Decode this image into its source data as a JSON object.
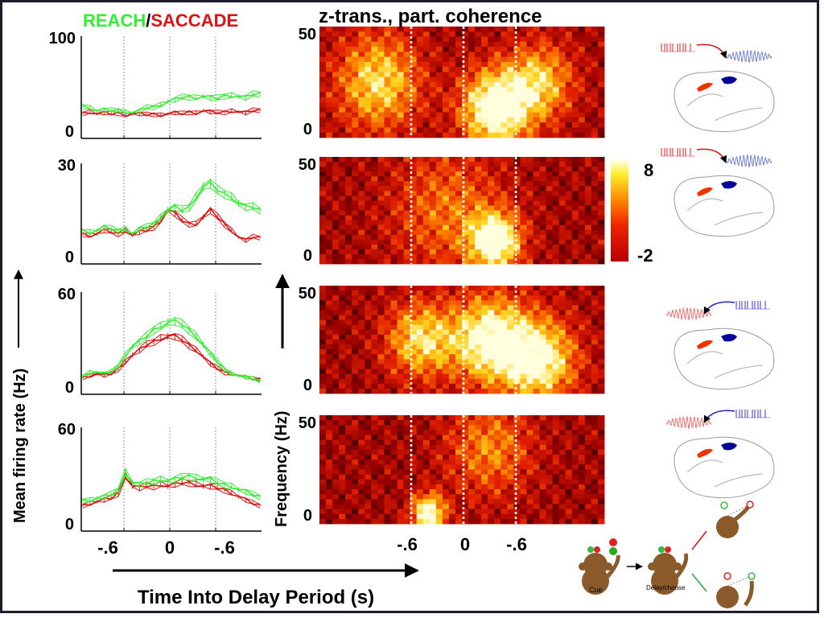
{
  "title": {
    "reach": "REACH",
    "slash": "/",
    "saccade": "SACCADE",
    "coherence": "z-trans., part. coherence"
  },
  "colors": {
    "reach": "#33ee33",
    "saccade": "#dd1111",
    "brain_red": "#ee3300",
    "brain_blue": "#000099"
  },
  "axes": {
    "firing_ylabel": "Mean firing rate (Hz)",
    "freq_ylabel": "Frequency (Hz)",
    "xlabel": "Time Into Delay Period (s)",
    "x_ticks": [
      "-.6",
      "0",
      "-.6"
    ],
    "freq_ticks": [
      "50",
      "0"
    ],
    "colorbar_ticks": [
      "8",
      "-2"
    ]
  },
  "diagram": {
    "cue_label": "Cue",
    "delay_label": "Delay/choose"
  },
  "chart_data": [
    {
      "type": "line",
      "panel": 1,
      "ylim": [
        0,
        100
      ],
      "y_ticks": [
        "100",
        "0"
      ],
      "series": [
        {
          "name": "REACH",
          "values": [
            32,
            30,
            27,
            28,
            27,
            28,
            26,
            25,
            27,
            30,
            31,
            33,
            36,
            38,
            40,
            41,
            40,
            41,
            40,
            39,
            42,
            42,
            41,
            40,
            43,
            44
          ]
        },
        {
          "name": "SACCADE",
          "values": [
            25,
            26,
            24,
            25,
            24,
            25,
            23,
            24,
            24,
            23,
            24,
            23,
            24,
            25,
            24,
            26,
            25,
            27,
            26,
            25,
            26,
            27,
            26,
            25,
            27,
            28
          ]
        }
      ]
    },
    {
      "type": "line",
      "panel": 2,
      "ylim": [
        0,
        30
      ],
      "y_ticks": [
        "30",
        "0"
      ],
      "series": [
        {
          "name": "REACH",
          "values": [
            10,
            9.5,
            10,
            11,
            10.5,
            10,
            10.5,
            9,
            10.5,
            11,
            12,
            14,
            16,
            17,
            16,
            17,
            20,
            23,
            24,
            22,
            21,
            20,
            18,
            17,
            17,
            16
          ]
        },
        {
          "name": "SACCADE",
          "values": [
            9,
            8.5,
            9,
            10,
            9.5,
            9,
            10,
            8.5,
            9.5,
            10,
            11,
            13,
            16,
            15,
            13,
            12,
            12,
            14,
            16,
            14,
            12,
            10,
            8,
            7,
            8,
            8
          ]
        }
      ]
    },
    {
      "type": "line",
      "panel": 3,
      "ylim": [
        0,
        60
      ],
      "y_ticks": [
        "60",
        "0"
      ],
      "series": [
        {
          "name": "REACH",
          "values": [
            11,
            13,
            13,
            12,
            13,
            17,
            23,
            28,
            31,
            34,
            38,
            40,
            42,
            43,
            41,
            38,
            34,
            29,
            24,
            19,
            15,
            12,
            11,
            10,
            9,
            8
          ]
        },
        {
          "name": "SACCADE",
          "values": [
            10,
            11,
            12,
            11,
            12,
            15,
            19,
            23,
            26,
            29,
            31,
            33,
            34,
            34,
            32,
            29,
            26,
            22,
            18,
            15,
            13,
            12,
            11,
            10,
            9,
            9
          ]
        }
      ]
    },
    {
      "type": "line",
      "panel": 4,
      "ylim": [
        0,
        60
      ],
      "y_ticks": [
        "60",
        "0"
      ],
      "series": [
        {
          "name": "REACH",
          "values": [
            18,
            18,
            19,
            20,
            21,
            24,
            34,
            28,
            27,
            28,
            29,
            30,
            29,
            30,
            31,
            32,
            31,
            30,
            30,
            28,
            27,
            26,
            24,
            23,
            21,
            20
          ]
        },
        {
          "name": "SACCADE",
          "values": [
            15,
            16,
            17,
            18,
            19,
            22,
            32,
            26,
            25,
            26,
            26,
            27,
            26,
            27,
            28,
            28,
            27,
            26,
            26,
            25,
            24,
            22,
            20,
            18,
            16,
            15
          ]
        }
      ]
    },
    {
      "type": "heatmap",
      "panel": 1,
      "ylim": [
        0,
        50
      ],
      "colorbar_range": [
        -2,
        8
      ]
    },
    {
      "type": "heatmap",
      "panel": 2,
      "ylim": [
        0,
        50
      ],
      "colorbar_range": [
        -2,
        8
      ]
    },
    {
      "type": "heatmap",
      "panel": 3,
      "ylim": [
        0,
        50
      ],
      "colorbar_range": [
        -2,
        8
      ]
    },
    {
      "type": "heatmap",
      "panel": 4,
      "ylim": [
        0,
        50
      ],
      "colorbar_range": [
        -2,
        8
      ]
    }
  ]
}
